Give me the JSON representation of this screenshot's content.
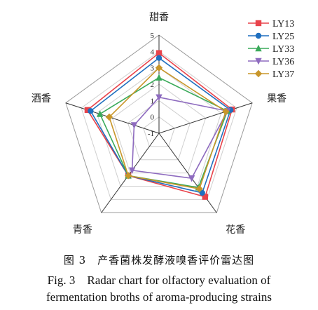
{
  "chart_data": {
    "type": "radar",
    "axes": [
      "甜香",
      "果香",
      "花香",
      "青香",
      "酒香"
    ],
    "ticks": [
      "-1",
      "0",
      "1",
      "2",
      "3",
      "4",
      "5"
    ],
    "range": [
      -1,
      5
    ],
    "series": [
      {
        "name": "LY13",
        "values": [
          3.9,
          3.7,
          3.8,
          2.2,
          3.6
        ],
        "color": "#e8434b",
        "marker": "square"
      },
      {
        "name": "LY25",
        "values": [
          3.6,
          3.6,
          3.5,
          2.2,
          3.4
        ],
        "color": "#1f6fbf",
        "marker": "circle"
      },
      {
        "name": "LY33",
        "values": [
          2.4,
          3.4,
          3.1,
          2.2,
          2.8
        ],
        "color": "#3aaa5a",
        "marker": "triangle"
      },
      {
        "name": "LY36",
        "values": [
          1.2,
          3.4,
          2.4,
          1.8,
          0.6
        ],
        "color": "#8e6bbf",
        "marker": "triangle-down"
      },
      {
        "name": "LY37",
        "values": [
          3.0,
          3.3,
          3.2,
          2.2,
          2.2
        ],
        "color": "#c8962a",
        "marker": "diamond"
      }
    ]
  },
  "caption": {
    "zh": "图 3　产香菌株发酵液嗅香评价雷达图",
    "en_line1": "Fig. 3　Radar chart for olfactory evaluation of",
    "en_line2": "fermentation broths of aroma-producing strains"
  }
}
